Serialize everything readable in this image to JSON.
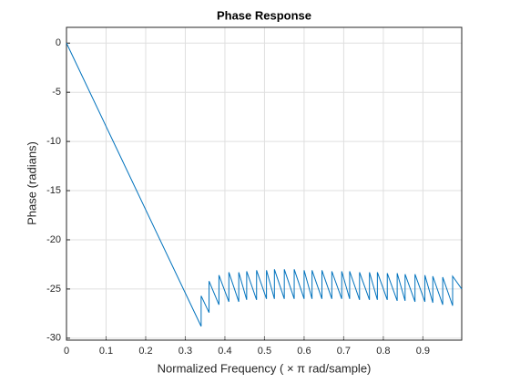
{
  "chart_data": {
    "type": "line",
    "title": "Phase Response",
    "x_label": "Normalized  Frequency    ( × π  rad/sample)",
    "y_label": "Phase (radians)",
    "xlim": [
      0,
      0.998
    ],
    "ylim": [
      -30.2,
      1.6
    ],
    "xticks": [
      0,
      0.1,
      0.2,
      0.3,
      0.4,
      0.5,
      0.6,
      0.7,
      0.8,
      0.9
    ],
    "yticks": [
      0,
      -5,
      -10,
      -15,
      -20,
      -25,
      -30
    ],
    "grid": true,
    "series": [
      {
        "color": "#0072bd",
        "x": [
          0,
          0.34,
          0.34,
          0.36,
          0.36,
          0.385,
          0.385,
          0.41,
          0.41,
          0.435,
          0.435,
          0.455,
          0.455,
          0.48,
          0.48,
          0.505,
          0.505,
          0.525,
          0.525,
          0.55,
          0.55,
          0.575,
          0.575,
          0.6,
          0.6,
          0.62,
          0.62,
          0.645,
          0.645,
          0.67,
          0.67,
          0.695,
          0.695,
          0.715,
          0.715,
          0.74,
          0.74,
          0.765,
          0.765,
          0.785,
          0.785,
          0.81,
          0.81,
          0.835,
          0.835,
          0.855,
          0.855,
          0.88,
          0.88,
          0.905,
          0.905,
          0.925,
          0.925,
          0.95,
          0.95,
          0.975,
          0.975,
          0.998
        ],
        "values": [
          0,
          -28.8,
          -25.7,
          -27.4,
          -24.2,
          -26.6,
          -23.6,
          -26.3,
          -23.3,
          -26.3,
          -23.3,
          -26.1,
          -23.2,
          -26.1,
          -23.1,
          -26.0,
          -23.1,
          -26.0,
          -23.0,
          -26.0,
          -23.0,
          -26.0,
          -23.0,
          -26.0,
          -23.1,
          -26.0,
          -23.1,
          -26.0,
          -23.1,
          -26.0,
          -23.2,
          -26.0,
          -23.2,
          -26.0,
          -23.2,
          -26.1,
          -23.3,
          -26.1,
          -23.3,
          -26.1,
          -23.3,
          -26.1,
          -23.4,
          -26.2,
          -23.4,
          -26.2,
          -23.5,
          -26.3,
          -23.5,
          -26.3,
          -23.6,
          -26.4,
          -23.7,
          -26.6,
          -23.8,
          -26.7,
          -23.7,
          -25.0
        ]
      }
    ]
  }
}
